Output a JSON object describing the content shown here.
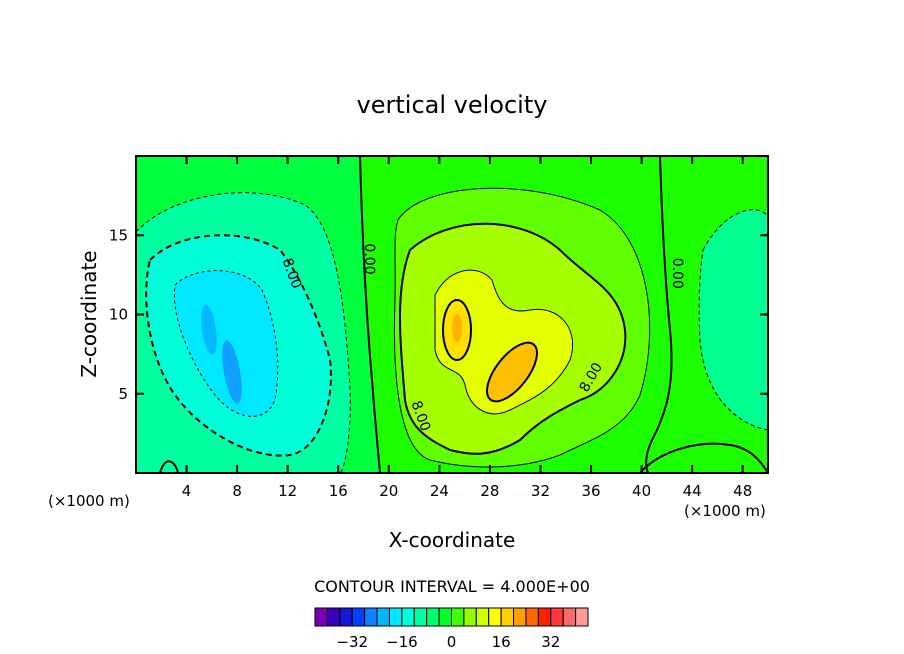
{
  "chart_data": {
    "type": "contour",
    "title": "vertical velocity",
    "xlabel": "X-coordinate",
    "ylabel": "Z-coordinate",
    "x_unit_left": "(×1000 m)",
    "x_unit_right": "(×1000 m)",
    "xlim": [
      0,
      50
    ],
    "ylim": [
      0,
      20
    ],
    "x_ticks": [
      4,
      8,
      12,
      16,
      20,
      24,
      28,
      32,
      36,
      40,
      44,
      48
    ],
    "y_ticks": [
      5,
      10,
      15
    ],
    "contour_interval_text": "CONTOUR INTERVAL = 4.000E+00",
    "contour_labels": [
      {
        "text": "8.00",
        "x": 12.0,
        "y": 12.5
      },
      {
        "text": "0.00",
        "x": 18.1,
        "y": 13.5
      },
      {
        "text": "0.00",
        "x": 42.5,
        "y": 12.6
      },
      {
        "text": "8.00",
        "x": 22.2,
        "y": 3.5
      },
      {
        "text": "8.00",
        "x": 36.3,
        "y": 5.9
      }
    ],
    "colorbar": {
      "colors": [
        "#7a00b0",
        "#3a00c0",
        "#1818d8",
        "#0040ff",
        "#1080ff",
        "#00b8ff",
        "#00e8ff",
        "#00ffd8",
        "#00ffa0",
        "#00ff68",
        "#00ff28",
        "#40ff00",
        "#90ff00",
        "#d0ff00",
        "#ffff00",
        "#ffd000",
        "#ffa000",
        "#ff6800",
        "#ff2000",
        "#ff3838",
        "#ff6868",
        "#ff9898"
      ],
      "tick_labels": [
        "−32",
        "−16",
        "0",
        "16",
        "32"
      ],
      "tick_values": [
        -32,
        -16,
        0,
        16,
        32
      ],
      "vmin": -44,
      "vmax": 44
    }
  }
}
